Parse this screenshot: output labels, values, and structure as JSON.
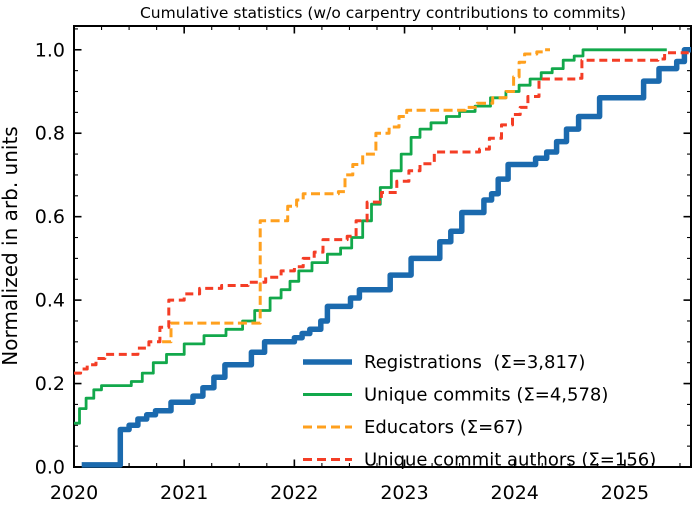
{
  "chart_data": {
    "type": "line",
    "title": "Cumulative statistics (w/o carpentry contributions to commits)",
    "xlabel": "",
    "ylabel": "Normalized in arb. units",
    "xlim": [
      2020.0,
      2025.6
    ],
    "ylim": [
      0,
      1.057
    ],
    "x_ticks": [
      2020,
      2021,
      2022,
      2023,
      2024,
      2025
    ],
    "y_ticks": [
      0.0,
      0.2,
      0.4,
      0.6,
      0.8,
      1.0
    ],
    "x_minor_step": 0.25,
    "y_minor_step": 0.05,
    "grid": false,
    "tick_direction": "in",
    "ticks_all_sides": true,
    "legend_position": "lower-right-inside",
    "step_mode": "post",
    "axis_color": "#000000",
    "series": [
      {
        "name": "registrations",
        "label": "Registrations  (Σ=3,817)",
        "total": 3817,
        "color": "#1b6aae",
        "style": "solid",
        "width": 5.5,
        "points": [
          [
            2020.07,
            0.005
          ],
          [
            2020.42,
            0.09
          ],
          [
            2020.5,
            0.1
          ],
          [
            2020.58,
            0.115
          ],
          [
            2020.66,
            0.125
          ],
          [
            2020.74,
            0.135
          ],
          [
            2020.88,
            0.155
          ],
          [
            2021.08,
            0.17
          ],
          [
            2021.17,
            0.19
          ],
          [
            2021.27,
            0.215
          ],
          [
            2021.37,
            0.245
          ],
          [
            2021.61,
            0.275
          ],
          [
            2021.73,
            0.3
          ],
          [
            2022.0,
            0.31
          ],
          [
            2022.07,
            0.32
          ],
          [
            2022.14,
            0.33
          ],
          [
            2022.24,
            0.35
          ],
          [
            2022.3,
            0.385
          ],
          [
            2022.51,
            0.405
          ],
          [
            2022.59,
            0.425
          ],
          [
            2022.87,
            0.46
          ],
          [
            2023.06,
            0.5
          ],
          [
            2023.32,
            0.54
          ],
          [
            2023.42,
            0.565
          ],
          [
            2023.52,
            0.61
          ],
          [
            2023.72,
            0.64
          ],
          [
            2023.79,
            0.655
          ],
          [
            2023.85,
            0.69
          ],
          [
            2023.94,
            0.725
          ],
          [
            2024.19,
            0.74
          ],
          [
            2024.29,
            0.755
          ],
          [
            2024.38,
            0.78
          ],
          [
            2024.47,
            0.81
          ],
          [
            2024.58,
            0.84
          ],
          [
            2024.77,
            0.885
          ],
          [
            2025.17,
            0.925
          ],
          [
            2025.31,
            0.955
          ],
          [
            2025.47,
            0.972
          ],
          [
            2025.54,
            1.0
          ],
          [
            2025.6,
            1.0
          ]
        ]
      },
      {
        "name": "unique-commits",
        "label": "Unique commits (Σ=4,578)",
        "total": 4578,
        "color": "#12a84b",
        "style": "solid",
        "width": 2.8,
        "points": [
          [
            2020.0,
            0.105
          ],
          [
            2020.05,
            0.14
          ],
          [
            2020.11,
            0.165
          ],
          [
            2020.18,
            0.185
          ],
          [
            2020.25,
            0.195
          ],
          [
            2020.52,
            0.205
          ],
          [
            2020.62,
            0.225
          ],
          [
            2020.72,
            0.25
          ],
          [
            2020.84,
            0.27
          ],
          [
            2021.0,
            0.295
          ],
          [
            2021.18,
            0.315
          ],
          [
            2021.38,
            0.33
          ],
          [
            2021.53,
            0.35
          ],
          [
            2021.64,
            0.375
          ],
          [
            2021.78,
            0.405
          ],
          [
            2021.88,
            0.425
          ],
          [
            2021.96,
            0.445
          ],
          [
            2022.04,
            0.47
          ],
          [
            2022.16,
            0.49
          ],
          [
            2022.3,
            0.51
          ],
          [
            2022.42,
            0.525
          ],
          [
            2022.52,
            0.55
          ],
          [
            2022.62,
            0.59
          ],
          [
            2022.7,
            0.63
          ],
          [
            2022.78,
            0.67
          ],
          [
            2022.88,
            0.71
          ],
          [
            2022.97,
            0.75
          ],
          [
            2023.06,
            0.79
          ],
          [
            2023.14,
            0.81
          ],
          [
            2023.24,
            0.825
          ],
          [
            2023.38,
            0.84
          ],
          [
            2023.5,
            0.852
          ],
          [
            2023.64,
            0.865
          ],
          [
            2023.78,
            0.885
          ],
          [
            2023.92,
            0.9
          ],
          [
            2024.04,
            0.915
          ],
          [
            2024.14,
            0.93
          ],
          [
            2024.24,
            0.945
          ],
          [
            2024.34,
            0.955
          ],
          [
            2024.44,
            0.975
          ],
          [
            2024.54,
            0.985
          ],
          [
            2024.62,
            1.0
          ],
          [
            2025.38,
            1.0
          ]
        ]
      },
      {
        "name": "educators",
        "label": "Educators (Σ=67)",
        "total": 67,
        "color": "#ffa01e",
        "style": "dashed",
        "width": 3,
        "dash": "9 4.5",
        "points": [
          [
            2020.8,
            0.3
          ],
          [
            2020.88,
            0.345
          ],
          [
            2021.69,
            0.59
          ],
          [
            2021.94,
            0.625
          ],
          [
            2022.02,
            0.64
          ],
          [
            2022.08,
            0.655
          ],
          [
            2022.4,
            0.66
          ],
          [
            2022.46,
            0.7
          ],
          [
            2022.53,
            0.725
          ],
          [
            2022.62,
            0.75
          ],
          [
            2022.74,
            0.8
          ],
          [
            2022.86,
            0.815
          ],
          [
            2022.95,
            0.84
          ],
          [
            2023.02,
            0.855
          ],
          [
            2023.55,
            0.862
          ],
          [
            2023.66,
            0.872
          ],
          [
            2023.8,
            0.885
          ],
          [
            2023.92,
            0.9
          ],
          [
            2023.99,
            0.935
          ],
          [
            2024.04,
            0.97
          ],
          [
            2024.09,
            0.99
          ],
          [
            2024.2,
            0.995
          ],
          [
            2024.27,
            1.0
          ],
          [
            2024.32,
            1.0
          ]
        ]
      },
      {
        "name": "unique-commit-authors",
        "label": "Unique commit authors (Σ=156)",
        "total": 156,
        "color": "#f43d25",
        "style": "dashed",
        "width": 3,
        "dash": "8 4.7",
        "points": [
          [
            2020.0,
            0.225
          ],
          [
            2020.06,
            0.235
          ],
          [
            2020.12,
            0.245
          ],
          [
            2020.2,
            0.26
          ],
          [
            2020.28,
            0.27
          ],
          [
            2020.58,
            0.285
          ],
          [
            2020.68,
            0.3
          ],
          [
            2020.78,
            0.335
          ],
          [
            2020.86,
            0.4
          ],
          [
            2021.0,
            0.415
          ],
          [
            2021.14,
            0.428
          ],
          [
            2021.34,
            0.435
          ],
          [
            2021.58,
            0.443
          ],
          [
            2021.74,
            0.455
          ],
          [
            2021.88,
            0.47
          ],
          [
            2022.0,
            0.48
          ],
          [
            2022.08,
            0.5
          ],
          [
            2022.18,
            0.515
          ],
          [
            2022.26,
            0.545
          ],
          [
            2022.48,
            0.553
          ],
          [
            2022.56,
            0.59
          ],
          [
            2022.66,
            0.635
          ],
          [
            2022.79,
            0.658
          ],
          [
            2022.93,
            0.685
          ],
          [
            2023.04,
            0.71
          ],
          [
            2023.14,
            0.727
          ],
          [
            2023.27,
            0.755
          ],
          [
            2023.68,
            0.762
          ],
          [
            2023.77,
            0.788
          ],
          [
            2023.88,
            0.82
          ],
          [
            2023.98,
            0.845
          ],
          [
            2024.05,
            0.862
          ],
          [
            2024.12,
            0.888
          ],
          [
            2024.22,
            0.93
          ],
          [
            2024.58,
            0.932
          ],
          [
            2024.61,
            0.975
          ],
          [
            2025.3,
            0.978
          ],
          [
            2025.36,
            0.993
          ],
          [
            2025.58,
            0.993
          ]
        ]
      }
    ]
  }
}
